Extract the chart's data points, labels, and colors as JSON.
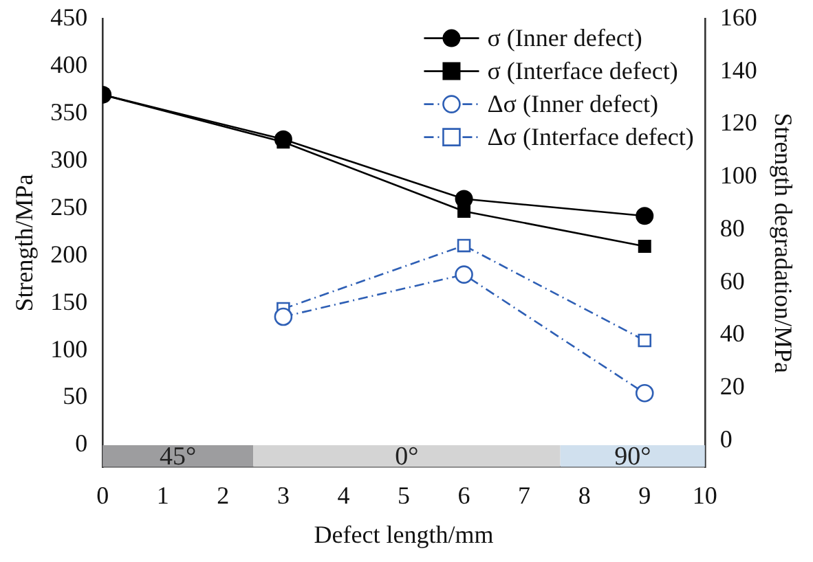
{
  "chart_data": {
    "type": "line",
    "xlabel": "Defect length/mm",
    "ylabel": "Strength/MPa",
    "y2label": "Strength degradation/MPa",
    "xlim": [
      0,
      10
    ],
    "xticks": [
      0,
      1,
      2,
      3,
      4,
      5,
      6,
      7,
      8,
      9,
      10
    ],
    "ylim": [
      -23,
      450
    ],
    "yticks": [
      0,
      50,
      100,
      150,
      200,
      250,
      300,
      350,
      400,
      450
    ],
    "y2lim": [
      -10,
      160
    ],
    "y2ticks": [
      0,
      20,
      40,
      60,
      80,
      100,
      120,
      140,
      160
    ],
    "grid": false,
    "legend": "top right",
    "bands": [
      {
        "axis": "x",
        "from": 0,
        "to": 2.5,
        "label": "45°",
        "color": "#9d9d9f"
      },
      {
        "axis": "x",
        "from": 2.5,
        "to": 7.6,
        "label": "0°",
        "color": "#d4d4d4"
      },
      {
        "axis": "x",
        "from": 7.6,
        "to": 10,
        "label": "90°",
        "color": "#d0e0ee"
      }
    ],
    "series": [
      {
        "name": "σ (Inner defect)",
        "color": "#000000",
        "marker": "circle",
        "line_style": "solid",
        "x": [
          0,
          3,
          6,
          9
        ],
        "values": [
          370,
          323,
          260,
          242
        ]
      },
      {
        "name": "σ (Interface defect)",
        "color": "#000000",
        "marker": "square",
        "line_style": "solid",
        "x": [
          0,
          3,
          6,
          9
        ],
        "values": [
          370,
          320,
          247,
          210
        ]
      },
      {
        "name": "Δσ (Inner defect)",
        "color": "#2e5fb5",
        "marker": "circle",
        "line_style": "dashed",
        "axis": "y2",
        "x": [
          3,
          6,
          9
        ],
        "values": [
          47,
          63,
          18
        ]
      },
      {
        "name": "Δσ (Interface defect)",
        "color": "#2e5fb5",
        "marker": "square",
        "line_style": "dashed",
        "axis": "y2",
        "x": [
          3,
          6,
          9
        ],
        "values": [
          50,
          74,
          38
        ]
      }
    ]
  }
}
